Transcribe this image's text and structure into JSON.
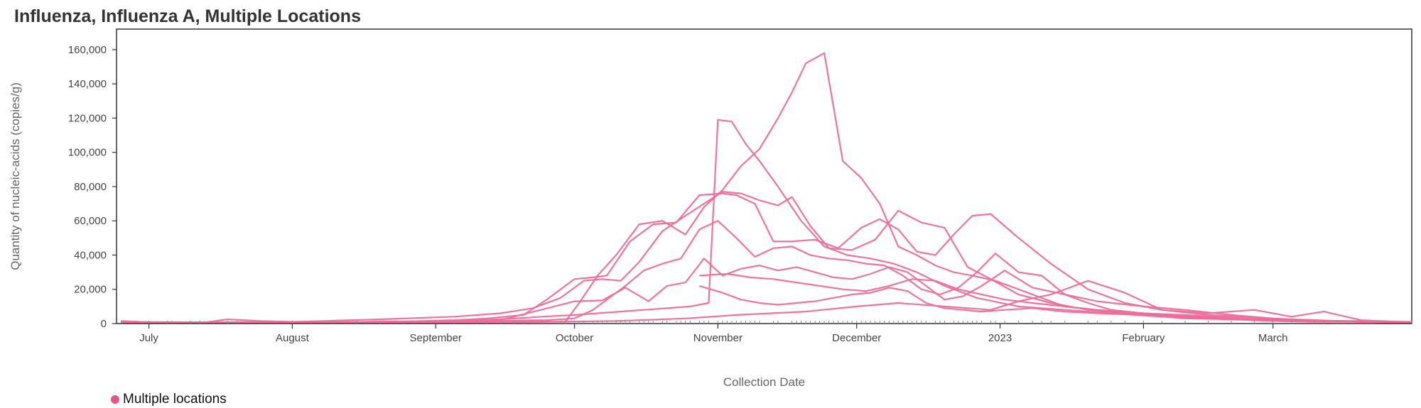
{
  "colors": {
    "series": "#ee6b9b",
    "legend_dot": "#e8558a",
    "frame": "#333333"
  },
  "chart_data": {
    "type": "line",
    "title": "Influenza, Influenza A, Multiple Locations",
    "xlabel": "Collection Date",
    "ylabel": "Quantity of nucleic-acids (copies/g)",
    "xlim": [
      "2022-06-24",
      "2023-03-31"
    ],
    "ylim": [
      0,
      172000
    ],
    "grid": false,
    "legend_position": "bottom-left",
    "x_ticks": [
      {
        "label": "July",
        "date": "2022-07-01"
      },
      {
        "label": "August",
        "date": "2022-08-01"
      },
      {
        "label": "September",
        "date": "2022-09-01"
      },
      {
        "label": "October",
        "date": "2022-10-01"
      },
      {
        "label": "November",
        "date": "2022-11-01"
      },
      {
        "label": "December",
        "date": "2022-12-01"
      },
      {
        "label": "2023",
        "date": "2023-01-01"
      },
      {
        "label": "February",
        "date": "2023-02-01"
      },
      {
        "label": "March",
        "date": "2023-03-01"
      }
    ],
    "y_ticks": [
      {
        "label": "0",
        "value": 0
      },
      {
        "label": "20,000",
        "value": 20000
      },
      {
        "label": "40,000",
        "value": 40000
      },
      {
        "label": "60,000",
        "value": 60000
      },
      {
        "label": "80,000",
        "value": 80000
      },
      {
        "label": "100,000",
        "value": 100000
      },
      {
        "label": "120,000",
        "value": 120000
      },
      {
        "label": "140,000",
        "value": 140000
      },
      {
        "label": "160,000",
        "value": 160000
      }
    ],
    "legend": [
      {
        "label": "Multiple locations"
      }
    ],
    "series": [
      {
        "x": [
          "2022-06-25",
          "2022-07-01",
          "2022-07-06",
          "2022-07-12",
          "2022-07-18",
          "2022-07-25",
          "2022-08-05",
          "2022-08-20",
          "2022-09-01",
          "2022-09-10",
          "2022-09-18",
          "2022-09-24",
          "2022-10-01",
          "2022-10-06",
          "2022-10-11",
          "2022-10-16",
          "2022-10-21",
          "2022-10-26",
          "2022-10-30",
          "2022-11-01",
          "2022-11-04",
          "2022-11-07",
          "2022-11-10",
          "2022-11-14",
          "2022-11-19",
          "2022-11-24",
          "2022-11-29",
          "2022-12-04",
          "2022-12-09",
          "2022-12-14",
          "2022-12-20",
          "2022-12-27",
          "2023-01-05",
          "2023-01-15",
          "2023-01-25",
          "2023-02-05",
          "2023-02-20",
          "2023-03-05",
          "2023-03-20",
          "2023-03-31"
        ],
        "values": [
          1500,
          800,
          500,
          300,
          2500,
          1500,
          800,
          500,
          1000,
          2000,
          3000,
          4000,
          5000,
          6000,
          7000,
          8000,
          9000,
          10000,
          12000,
          119000,
          118000,
          105000,
          95000,
          80000,
          60000,
          45000,
          40000,
          38000,
          35000,
          30000,
          22000,
          15000,
          10000,
          8000,
          6000,
          4000,
          2500,
          1500,
          1000,
          500
        ]
      },
      {
        "x": [
          "2022-06-25",
          "2022-07-05",
          "2022-07-15",
          "2022-08-01",
          "2022-08-15",
          "2022-08-25",
          "2022-09-05",
          "2022-09-12",
          "2022-09-20",
          "2022-09-25",
          "2022-10-01",
          "2022-10-05",
          "2022-10-08",
          "2022-10-13",
          "2022-10-18",
          "2022-10-23",
          "2022-10-28",
          "2022-11-02",
          "2022-11-05",
          "2022-11-09",
          "2022-11-13",
          "2022-11-17",
          "2022-11-22",
          "2022-11-27",
          "2022-12-02",
          "2022-12-06",
          "2022-12-10",
          "2022-12-14",
          "2022-12-18",
          "2022-12-22",
          "2022-12-26",
          "2022-12-30",
          "2023-01-05",
          "2023-01-12",
          "2023-01-20",
          "2023-01-28",
          "2023-02-05",
          "2023-02-15",
          "2023-03-01",
          "2023-03-15",
          "2023-03-31"
        ],
        "values": [
          800,
          600,
          500,
          600,
          1000,
          1200,
          2000,
          3000,
          5000,
          14000,
          26000,
          27000,
          28000,
          48000,
          58000,
          59000,
          75000,
          76000,
          75000,
          70000,
          48000,
          48000,
          49000,
          44000,
          56000,
          61000,
          55000,
          42000,
          40000,
          52000,
          63000,
          64000,
          50000,
          35000,
          20000,
          12000,
          8000,
          5000,
          3000,
          1500,
          800
        ]
      },
      {
        "x": [
          "2022-06-25",
          "2022-07-10",
          "2022-08-01",
          "2022-08-20",
          "2022-09-05",
          "2022-09-15",
          "2022-09-22",
          "2022-09-28",
          "2022-10-03",
          "2022-10-07",
          "2022-10-11",
          "2022-10-15",
          "2022-10-20",
          "2022-10-25",
          "2022-10-29",
          "2022-11-02",
          "2022-11-06",
          "2022-11-10",
          "2022-11-14",
          "2022-11-17",
          "2022-11-21",
          "2022-11-25",
          "2022-11-30",
          "2022-12-05",
          "2022-12-10",
          "2022-12-15",
          "2022-12-20",
          "2022-12-25",
          "2022-12-30",
          "2023-01-05",
          "2023-01-12",
          "2023-01-20",
          "2023-02-01",
          "2023-02-15",
          "2023-03-01",
          "2023-03-20",
          "2023-03-31"
        ],
        "values": [
          1000,
          800,
          1000,
          2500,
          4000,
          6000,
          9000,
          15000,
          25000,
          26000,
          25000,
          36000,
          54000,
          63000,
          70000,
          77000,
          76000,
          72000,
          69000,
          74000,
          57000,
          44000,
          43000,
          49000,
          66000,
          59000,
          56000,
          33000,
          26000,
          17000,
          12000,
          8000,
          5000,
          3000,
          2000,
          1500,
          800
        ]
      },
      {
        "x": [
          "2022-06-25",
          "2022-07-15",
          "2022-08-10",
          "2022-09-01",
          "2022-09-20",
          "2022-09-29",
          "2022-10-02",
          "2022-10-06",
          "2022-10-10",
          "2022-10-15",
          "2022-10-20",
          "2022-10-25",
          "2022-10-29",
          "2022-11-02",
          "2022-11-06",
          "2022-11-10",
          "2022-11-14",
          "2022-11-17",
          "2022-11-20",
          "2022-11-24",
          "2022-11-28",
          "2022-12-02",
          "2022-12-06",
          "2022-12-10",
          "2022-12-14",
          "2022-12-18",
          "2022-12-22",
          "2022-12-26",
          "2022-12-31",
          "2023-01-05",
          "2023-01-10",
          "2023-01-15",
          "2023-01-25",
          "2023-02-05",
          "2023-02-20",
          "2023-03-05",
          "2023-03-20",
          "2023-03-31"
        ],
        "values": [
          500,
          600,
          800,
          1000,
          1500,
          1000,
          12000,
          28000,
          40000,
          58000,
          60000,
          52000,
          68000,
          78000,
          92000,
          102000,
          120000,
          135000,
          152000,
          158000,
          95000,
          85000,
          70000,
          45000,
          40000,
          34000,
          30000,
          28000,
          25000,
          20000,
          15000,
          10000,
          7000,
          5000,
          3000,
          2000,
          1000,
          500
        ]
      },
      {
        "x": [
          "2022-06-25",
          "2022-07-20",
          "2022-08-15",
          "2022-09-10",
          "2022-09-25",
          "2022-10-01",
          "2022-10-05",
          "2022-10-08",
          "2022-10-12",
          "2022-10-16",
          "2022-10-20",
          "2022-10-24",
          "2022-10-28",
          "2022-11-01",
          "2022-11-05",
          "2022-11-09",
          "2022-11-13",
          "2022-11-17",
          "2022-11-21",
          "2022-11-25",
          "2022-11-29",
          "2022-12-03",
          "2022-12-07",
          "2022-12-11",
          "2022-12-15",
          "2022-12-19",
          "2022-12-23",
          "2022-12-27",
          "2022-12-31",
          "2023-01-05",
          "2023-01-10",
          "2023-01-15",
          "2023-01-20",
          "2023-01-25",
          "2023-02-01",
          "2023-02-10",
          "2023-02-20",
          "2023-03-05",
          "2023-03-15",
          "2023-03-31"
        ],
        "values": [
          300,
          500,
          1000,
          1500,
          2000,
          3000,
          8000,
          14000,
          22000,
          31000,
          35000,
          38000,
          55000,
          60000,
          50000,
          39000,
          44000,
          45000,
          40000,
          38000,
          37000,
          35000,
          34000,
          28000,
          20000,
          17000,
          21000,
          30000,
          41000,
          30000,
          28000,
          17000,
          12000,
          8000,
          6000,
          4000,
          3000,
          2000,
          1500,
          1000
        ]
      },
      {
        "x": [
          "2022-06-25",
          "2022-08-01",
          "2022-09-15",
          "2022-10-01",
          "2022-10-07",
          "2022-10-12",
          "2022-10-17",
          "2022-10-21",
          "2022-10-25",
          "2022-10-29",
          "2022-11-02",
          "2022-11-06",
          "2022-11-10",
          "2022-11-14",
          "2022-11-18",
          "2022-11-22",
          "2022-11-26",
          "2022-11-30",
          "2022-12-04",
          "2022-12-08",
          "2022-12-12",
          "2022-12-16",
          "2022-12-20",
          "2022-12-24",
          "2022-12-28",
          "2023-01-02",
          "2023-01-08",
          "2023-01-15",
          "2023-01-22",
          "2023-02-01",
          "2023-02-10",
          "2023-02-20",
          "2023-03-01",
          "2023-03-10",
          "2023-03-20",
          "2023-03-31"
        ],
        "values": [
          200,
          500,
          2000,
          13000,
          13500,
          21000,
          13000,
          22000,
          24000,
          38000,
          28000,
          32000,
          34000,
          31000,
          33000,
          30000,
          27000,
          26000,
          29000,
          33000,
          30000,
          22000,
          14000,
          16000,
          22000,
          31000,
          21000,
          17000,
          13000,
          10000,
          8000,
          5000,
          3000,
          1500,
          1000,
          500
        ]
      },
      {
        "x": [
          "2022-10-28",
          "2022-11-02",
          "2022-11-06",
          "2022-11-10",
          "2022-11-14",
          "2022-11-18",
          "2022-11-22",
          "2022-11-26",
          "2022-11-30",
          "2022-12-04",
          "2022-12-08",
          "2022-12-12",
          "2022-12-16",
          "2022-12-20",
          "2022-12-24",
          "2022-12-28",
          "2023-01-02",
          "2023-01-08",
          "2023-01-15",
          "2023-01-22",
          "2023-02-01",
          "2023-02-10",
          "2023-02-20",
          "2023-03-01",
          "2023-03-10",
          "2023-03-20",
          "2023-03-31"
        ],
        "values": [
          22000,
          18000,
          14000,
          12000,
          11000,
          12000,
          13000,
          15000,
          17000,
          18000,
          21000,
          19000,
          12000,
          9000,
          8000,
          7000,
          8000,
          9000,
          7000,
          6000,
          5000,
          3000,
          2500,
          1500,
          1000,
          1000,
          500
        ]
      },
      {
        "x": [
          "2022-10-28",
          "2022-11-03",
          "2022-11-08",
          "2022-11-13",
          "2022-11-18",
          "2022-11-23",
          "2022-11-28",
          "2022-12-03",
          "2022-12-08",
          "2022-12-13",
          "2022-12-18",
          "2022-12-23",
          "2022-12-28",
          "2023-01-02",
          "2023-01-08",
          "2023-01-15",
          "2023-01-22",
          "2023-02-01",
          "2023-02-10",
          "2023-02-20",
          "2023-03-01",
          "2023-03-10",
          "2023-03-20",
          "2023-03-31"
        ],
        "values": [
          28000,
          29000,
          27000,
          26000,
          24000,
          22000,
          20000,
          19000,
          22000,
          26000,
          25000,
          20000,
          17000,
          14000,
          12000,
          10000,
          8000,
          6000,
          5000,
          3500,
          2000,
          1500,
          1000,
          500
        ]
      },
      {
        "x": [
          "2022-06-25",
          "2022-07-20",
          "2022-08-20",
          "2022-09-20",
          "2022-10-10",
          "2022-10-25",
          "2022-11-05",
          "2022-11-20",
          "2022-12-01",
          "2022-12-10",
          "2022-12-20",
          "2022-12-30",
          "2023-01-05",
          "2023-01-12",
          "2023-01-20",
          "2023-01-28",
          "2023-02-05",
          "2023-02-15",
          "2023-02-25",
          "2023-03-05",
          "2023-03-12",
          "2023-03-20",
          "2023-03-31"
        ],
        "values": [
          300,
          400,
          500,
          800,
          1500,
          3000,
          5000,
          7000,
          10000,
          12000,
          10000,
          8000,
          13000,
          17000,
          25000,
          18000,
          8000,
          6000,
          8000,
          4000,
          7000,
          2000,
          800
        ]
      }
    ]
  }
}
